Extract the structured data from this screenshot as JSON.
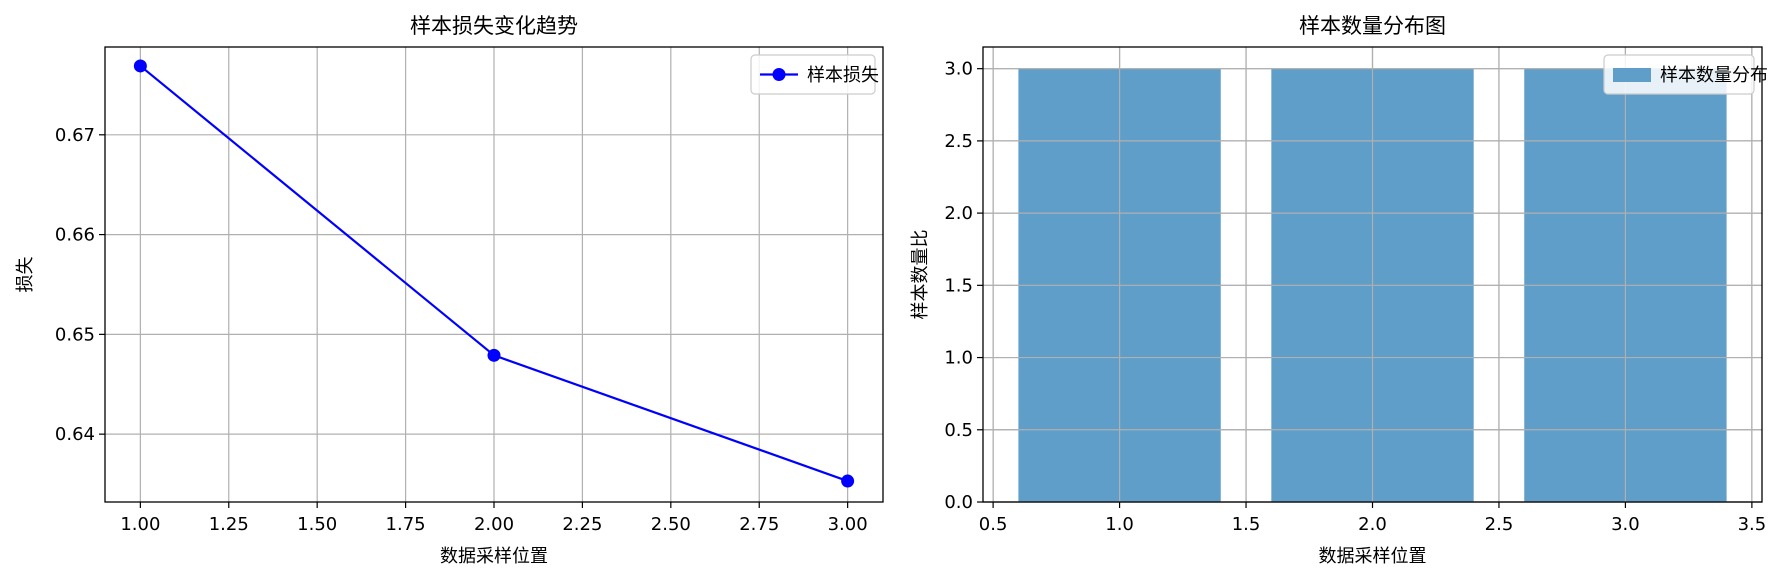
{
  "chart_data": [
    {
      "type": "line",
      "title": "样本损失变化趋势",
      "xlabel": "数据采样位置",
      "ylabel": "损失",
      "x": [
        1.0,
        2.0,
        3.0
      ],
      "xlim": [
        0.9,
        3.1
      ],
      "ylim": [
        0.6332,
        0.6788
      ],
      "xticks": [
        "1.00",
        "1.25",
        "1.50",
        "1.75",
        "2.00",
        "2.25",
        "2.50",
        "2.75",
        "3.00"
      ],
      "xtick_values": [
        1.0,
        1.25,
        1.5,
        1.75,
        2.0,
        2.25,
        2.5,
        2.75,
        3.0
      ],
      "yticks": [
        "0.64",
        "0.65",
        "0.66",
        "0.67"
      ],
      "ytick_values": [
        0.64,
        0.65,
        0.66,
        0.67
      ],
      "grid": true,
      "legend_position": "top-right",
      "series": [
        {
          "name": "样本损失",
          "color": "#0000ff",
          "marker": "circle",
          "values": [
            0.6769,
            0.6479,
            0.6353
          ]
        }
      ]
    },
    {
      "type": "bar",
      "title": "样本数量分布图",
      "xlabel": "数据采样位置",
      "ylabel": "样本数量比",
      "x": [
        1.0,
        2.0,
        3.0
      ],
      "bar_width": 0.8,
      "xlim": [
        0.46,
        3.54
      ],
      "ylim": [
        0,
        3.15
      ],
      "xticks": [
        "0.5",
        "1.0",
        "1.5",
        "2.0",
        "2.5",
        "3.0",
        "3.5"
      ],
      "xtick_values": [
        0.5,
        1.0,
        1.5,
        2.0,
        2.5,
        3.0,
        3.5
      ],
      "yticks": [
        "0.0",
        "0.5",
        "1.0",
        "1.5",
        "2.0",
        "2.5",
        "3.0"
      ],
      "ytick_values": [
        0.0,
        0.5,
        1.0,
        1.5,
        2.0,
        2.5,
        3.0
      ],
      "grid": true,
      "legend_position": "top-right",
      "series": [
        {
          "name": "样本数量分布",
          "color": "#5f9ec9",
          "values": [
            3,
            3,
            3
          ]
        }
      ]
    }
  ]
}
